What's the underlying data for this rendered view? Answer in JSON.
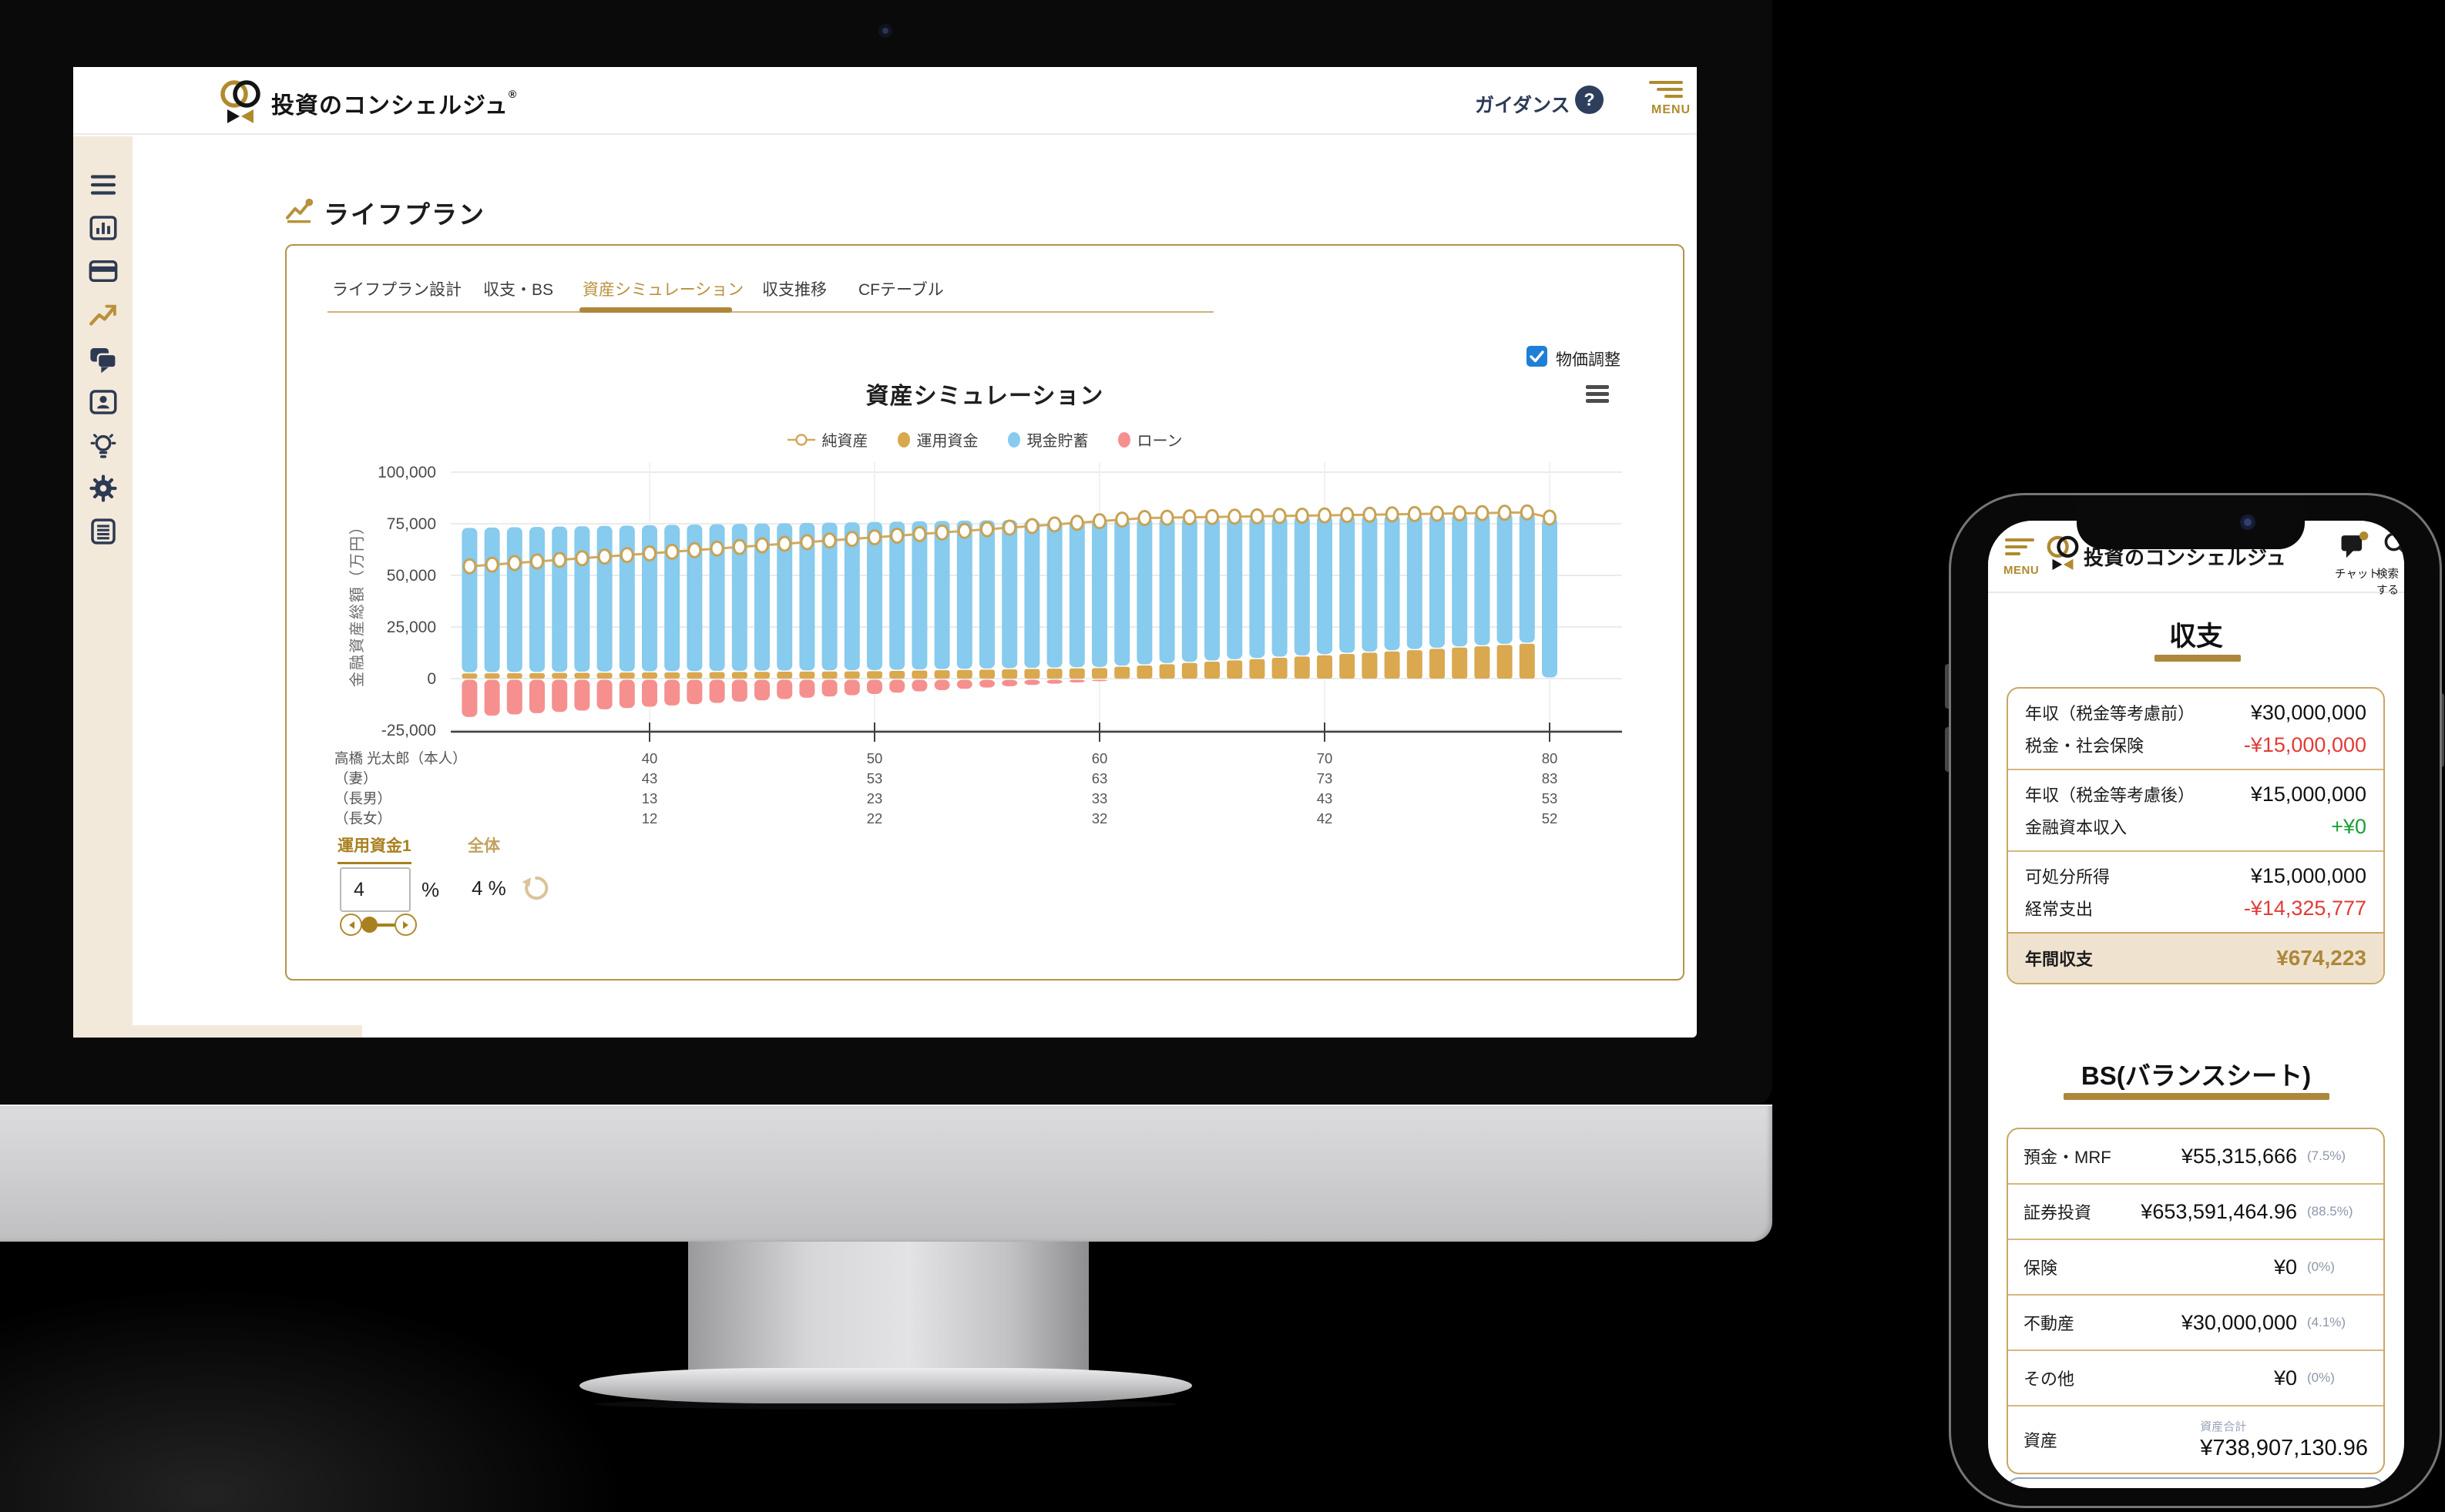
{
  "colors": {
    "accent_gold": "#ad873a",
    "gold_text": "#b08a2e",
    "navy": "#2e3a52",
    "negative_red": "#e23b36",
    "positive_green": "#1d9e33",
    "checkbox_blue": "#1d7fd6",
    "sidebar_beige": "#f3e9da",
    "bar_blue": "#87cbee",
    "bar_gold": "#d9a84f",
    "bar_red": "#f5908f",
    "line_gold": "#d2a95e"
  },
  "desktop": {
    "header": {
      "logo_text": "投資のコンシェルジュ",
      "logo_reg": "®",
      "guidance_label": "ガイダンス",
      "guidance_q": "?",
      "menu_label": "MENU"
    },
    "sidebar": {
      "icons": [
        "menu-icon",
        "bar-chart-icon",
        "credit-card-icon",
        "line-chart-icon",
        "chat-icon",
        "id-card-icon",
        "lightbulb-icon",
        "gear-icon",
        "document-icon"
      ]
    },
    "page_title": "ライフプラン",
    "tabs": [
      {
        "label": "ライフプラン設計",
        "active": false
      },
      {
        "label": "収支・BS",
        "active": false
      },
      {
        "label": "資産シミュレーション",
        "active": true
      },
      {
        "label": "収支推移",
        "active": false
      },
      {
        "label": "CFテーブル",
        "active": false
      }
    ],
    "price_adjust": {
      "label": "物価調整",
      "checked": true
    },
    "controls": {
      "fund_tab_label": "運用資金1",
      "overall_label": "全体",
      "rate_value": "4",
      "rate_unit": "%",
      "overall_value": "4 %"
    }
  },
  "chart_data": {
    "type": "bar",
    "subtype": "stacked-bars-with-line",
    "title": "資産シミュレーション",
    "ylabel": "金融資産総額（万円）",
    "ylim": [
      -25000,
      100000
    ],
    "grid": true,
    "legend_position": "top-center",
    "y_ticks": [
      100000,
      75000,
      50000,
      25000,
      0,
      -25000
    ],
    "y_tick_labels": [
      "100,000",
      "75,000",
      "50,000",
      "25,000",
      "0",
      "-25,000"
    ],
    "x_tick_ages": [
      40,
      50,
      60,
      70,
      80
    ],
    "legend": [
      {
        "name": "純資産",
        "type": "line",
        "color": "#d2a95e"
      },
      {
        "name": "運用資金",
        "type": "bar",
        "color": "#d9a84f"
      },
      {
        "name": "現金貯蓄",
        "type": "bar",
        "color": "#87cbee"
      },
      {
        "name": "ローン",
        "type": "bar",
        "color": "#f5908f"
      }
    ],
    "ages": [
      32,
      33,
      34,
      35,
      36,
      37,
      38,
      39,
      40,
      41,
      42,
      43,
      44,
      45,
      46,
      47,
      48,
      49,
      50,
      51,
      52,
      53,
      54,
      55,
      56,
      57,
      58,
      59,
      60,
      61,
      62,
      63,
      64,
      65,
      66,
      67,
      68,
      69,
      70,
      71,
      72,
      73,
      74,
      75,
      76,
      77,
      78,
      79,
      80
    ],
    "series": [
      {
        "name": "現金貯蓄",
        "color": "#87cbee",
        "values": [
          70500,
          70600,
          70700,
          70800,
          70900,
          71000,
          71100,
          71200,
          71300,
          71400,
          71500,
          71600,
          71700,
          71800,
          71900,
          72000,
          72100,
          72200,
          72280,
          72290,
          72300,
          72310,
          72320,
          72330,
          72340,
          72350,
          72360,
          72370,
          72380,
          71920,
          71460,
          71000,
          70540,
          70080,
          69620,
          69160,
          68700,
          68240,
          67780,
          67320,
          66860,
          66400,
          65940,
          65480,
          65020,
          64560,
          64100,
          63640,
          78000
        ]
      },
      {
        "name": "運用資金",
        "color": "#d9a84f",
        "values": [
          2500,
          2560,
          2620,
          2680,
          2740,
          2800,
          2860,
          2920,
          2980,
          3040,
          3100,
          3160,
          3220,
          3280,
          3340,
          3400,
          3460,
          3520,
          3600,
          3750,
          3900,
          4050,
          4200,
          4350,
          4500,
          4650,
          4800,
          4950,
          5100,
          5720,
          6340,
          6960,
          7580,
          8200,
          8820,
          9440,
          10060,
          10680,
          11300,
          11920,
          12540,
          13160,
          13780,
          14400,
          15020,
          15640,
          16260,
          16880,
          0
        ]
      },
      {
        "name": "ローン",
        "color": "#f5908f",
        "values": [
          -18600,
          -17980,
          -17360,
          -16740,
          -16120,
          -15500,
          -14880,
          -14260,
          -13640,
          -13020,
          -12400,
          -11780,
          -11160,
          -10540,
          -9920,
          -9300,
          -8680,
          -8060,
          -7440,
          -6820,
          -6200,
          -5580,
          -4960,
          -4340,
          -3720,
          -3100,
          -2480,
          -1860,
          -1240,
          -620,
          0,
          0,
          0,
          0,
          0,
          0,
          0,
          0,
          0,
          0,
          0,
          0,
          0,
          0,
          0,
          0,
          0,
          0,
          0
        ]
      },
      {
        "name": "純資産",
        "type": "line",
        "color": "#d2a95e",
        "values": [
          54400,
          55180,
          55960,
          56740,
          57520,
          58300,
          59080,
          59860,
          60640,
          61420,
          62200,
          62980,
          63760,
          64540,
          65320,
          66100,
          66880,
          67660,
          68440,
          69220,
          70000,
          70780,
          71560,
          72340,
          73120,
          73900,
          74680,
          75460,
          76240,
          77020,
          77800,
          77960,
          78120,
          78280,
          78440,
          78600,
          78760,
          78920,
          79080,
          79240,
          79400,
          79560,
          79720,
          79880,
          80040,
          80200,
          80360,
          80520,
          78000
        ]
      }
    ],
    "family_axis": {
      "rows": [
        {
          "label": "高橋 光太郎（本人）",
          "values": [
            "40",
            "50",
            "60",
            "70",
            "80"
          ]
        },
        {
          "label": "（妻）",
          "values": [
            "43",
            "53",
            "63",
            "73",
            "83"
          ]
        },
        {
          "label": "（長男）",
          "values": [
            "13",
            "23",
            "33",
            "43",
            "53"
          ]
        },
        {
          "label": "（長女）",
          "values": [
            "12",
            "22",
            "32",
            "42",
            "52"
          ]
        }
      ]
    }
  },
  "phone": {
    "header": {
      "menu_label": "MENU",
      "logo_text": "投資のコンシェルジュ",
      "chat_label": "チャット",
      "search_label": "検索する"
    },
    "income_section": {
      "title": "収支",
      "groups": [
        {
          "rows": [
            {
              "label": "年収（税金等考慮前）",
              "value": "¥30,000,000",
              "tone": "default"
            },
            {
              "label": "税金・社会保険",
              "value": "-¥15,000,000",
              "tone": "negative"
            }
          ]
        },
        {
          "rows": [
            {
              "label": "年収（税金等考慮後）",
              "value": "¥15,000,000",
              "tone": "default"
            },
            {
              "label": "金融資本収入",
              "value": "+¥0",
              "tone": "positive"
            }
          ]
        },
        {
          "rows": [
            {
              "label": "可処分所得",
              "value": "¥15,000,000",
              "tone": "default"
            },
            {
              "label": "経常支出",
              "value": "-¥14,325,777",
              "tone": "negative"
            }
          ]
        }
      ],
      "total_row": {
        "label": "年間収支",
        "value": "¥674,223"
      }
    },
    "bs_section": {
      "title": "BS(バランスシート)",
      "rows": [
        {
          "label": "預金・MRF",
          "value": "¥55,315,666",
          "pct": "(7.5%)"
        },
        {
          "label": "証券投資",
          "value": "¥653,591,464.96",
          "pct": "(88.5%)"
        },
        {
          "label": "保険",
          "value": "¥0",
          "pct": "(0%)"
        },
        {
          "label": "不動産",
          "value": "¥30,000,000",
          "pct": "(4.1%)"
        },
        {
          "label": "その他",
          "value": "¥0",
          "pct": "(0%)"
        }
      ],
      "total_row": {
        "caption": "資産合計",
        "label": "資産",
        "value": "¥738,907,130.96"
      }
    }
  }
}
